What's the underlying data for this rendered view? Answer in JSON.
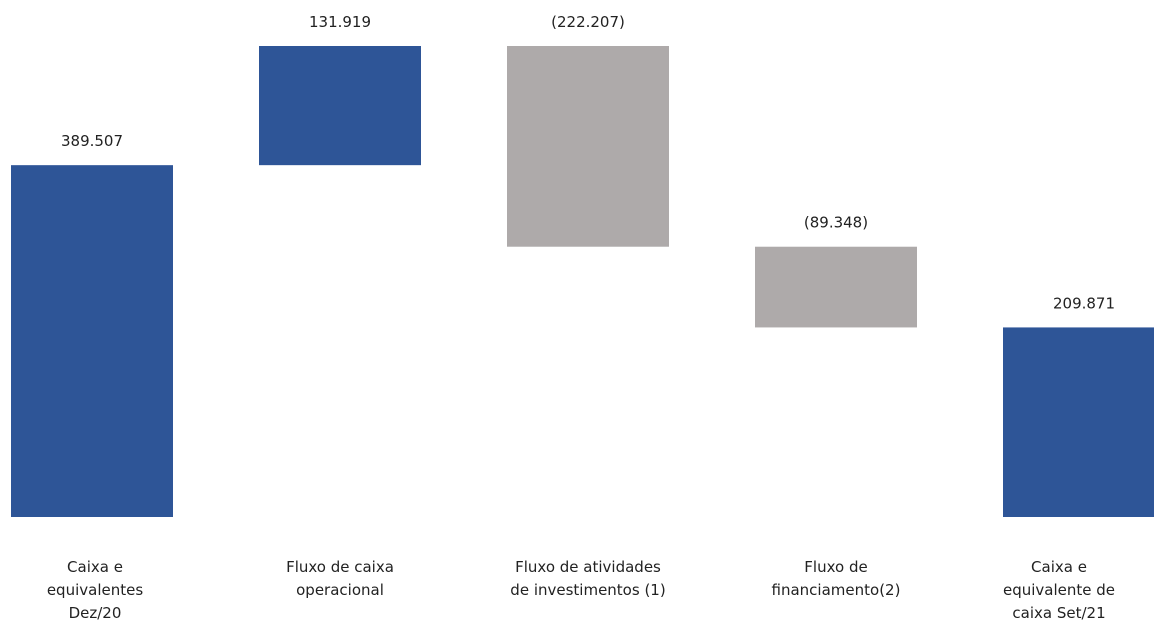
{
  "chart_data": {
    "type": "waterfall",
    "title": "",
    "xlabel": "",
    "ylabel": "",
    "colors": {
      "total": "#2E5597",
      "positive": "#2E5597",
      "negative": "#AEAAAA"
    },
    "grid": false,
    "legend": "none",
    "ylim": [
      0,
      521426
    ],
    "steps": [
      {
        "category": "Caixa e\nequivalentes\nDez/20",
        "kind": "total",
        "value": 389507,
        "label": "389.507"
      },
      {
        "category": "Fluxo de caixa\noperacional",
        "kind": "delta",
        "value": 131919,
        "label": "131.919"
      },
      {
        "category": "Fluxo de atividades\nde investimentos (1)",
        "kind": "delta",
        "value": -222207,
        "label": "(222.207)"
      },
      {
        "category": "Fluxo de\nfinanciamento(2)",
        "kind": "delta",
        "value": -89348,
        "label": "(89.348)"
      },
      {
        "category": "Caixa e\nequivalente de\ncaixa Set/21",
        "kind": "total",
        "value": 209871,
        "label": "209.871"
      }
    ]
  }
}
